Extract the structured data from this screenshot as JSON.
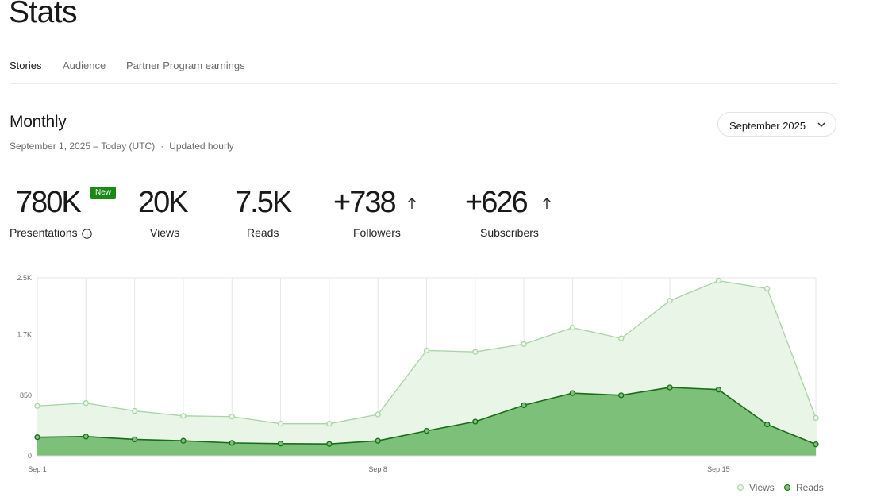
{
  "page": {
    "title": "Stats"
  },
  "tabs": [
    {
      "label": "Stories",
      "active": true
    },
    {
      "label": "Audience",
      "active": false
    },
    {
      "label": "Partner Program earnings",
      "active": false
    }
  ],
  "section": {
    "title": "Monthly",
    "date_range": "September 1, 2025 – Today (UTC)",
    "separator": "·",
    "update_note": "Updated hourly"
  },
  "month_select": {
    "value": "September 2025",
    "icon": "chevron-down-icon"
  },
  "stats": [
    {
      "value": "780K",
      "label": "Presentations",
      "badge": "New",
      "icon": "info-icon"
    },
    {
      "value": "20K",
      "label": "Views"
    },
    {
      "value": "7.5K",
      "label": "Reads"
    },
    {
      "value": "+738",
      "label": "Followers",
      "icon": "arrow-up-icon"
    },
    {
      "value": "+626",
      "label": "Subscribers",
      "icon": "arrow-up-icon"
    }
  ],
  "colors": {
    "views_line": "#a9d4a5",
    "views_fill": "#e9f5e7",
    "reads_line": "#1a6b1a",
    "reads_fill": "#7dc07a",
    "badge": "#1a8917"
  },
  "chart_data": {
    "type": "area",
    "title": "",
    "ylim": [
      0,
      2500
    ],
    "y_tick_labels": [
      "0",
      "850",
      "1.7K",
      "2.5K"
    ],
    "y_tick_values": [
      0,
      850,
      1700,
      2500
    ],
    "x_tick_labels": [
      "Sep 1",
      "Sep 8",
      "Sep 15"
    ],
    "x_tick_days": [
      1,
      8,
      15
    ],
    "days": [
      1,
      2,
      3,
      4,
      5,
      6,
      7,
      8,
      9,
      10,
      11,
      12,
      13,
      14,
      15,
      16,
      17
    ],
    "grid": true,
    "legend_position": "bottom-right",
    "series": [
      {
        "name": "Views",
        "values": [
          700,
          740,
          630,
          560,
          550,
          450,
          450,
          580,
          1480,
          1460,
          1570,
          1800,
          1650,
          2180,
          2460,
          2350,
          530
        ]
      },
      {
        "name": "Reads",
        "values": [
          260,
          270,
          230,
          210,
          180,
          170,
          165,
          210,
          350,
          480,
          710,
          880,
          850,
          960,
          930,
          440,
          160
        ]
      }
    ]
  }
}
